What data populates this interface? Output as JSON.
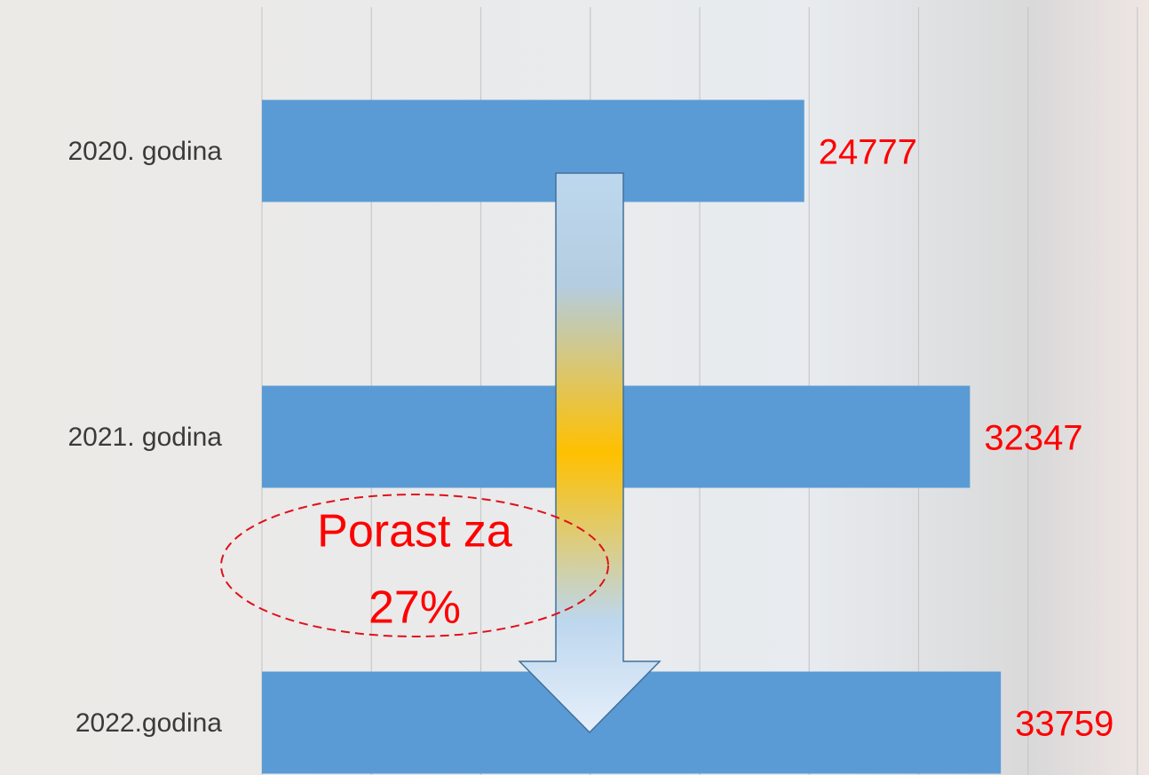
{
  "chart_data": {
    "type": "barh",
    "categories": [
      "2020. godina",
      "2021. godina",
      "2022.godina"
    ],
    "values": [
      24777,
      32347,
      33759
    ],
    "color": "#5b9bd5",
    "value_label_color": "#ff0000",
    "xlim": [
      0,
      40000
    ],
    "xticks": [
      0,
      5000,
      10000,
      15000,
      20000,
      25000,
      30000,
      35000,
      40000
    ],
    "grid": true,
    "annotation": [
      "Porast za",
      "27%"
    ]
  }
}
